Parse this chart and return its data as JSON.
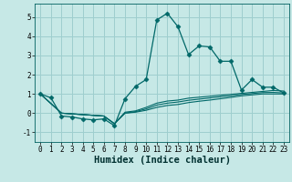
{
  "xlabel": "Humidex (Indice chaleur)",
  "ylabel": "",
  "xlim": [
    -0.5,
    23.5
  ],
  "ylim": [
    -1.5,
    5.7
  ],
  "bg_color": "#c6e8e6",
  "grid_color": "#9ecece",
  "line_color": "#006868",
  "lines": [
    {
      "x": [
        0,
        1,
        2,
        3,
        4,
        5,
        6,
        7,
        8,
        9,
        10,
        11,
        12,
        13,
        14,
        15,
        16,
        17,
        18,
        19,
        20,
        21,
        22,
        23
      ],
      "y": [
        1.0,
        0.8,
        -0.15,
        -0.2,
        -0.3,
        -0.35,
        -0.3,
        -0.65,
        0.75,
        1.4,
        1.75,
        4.85,
        5.2,
        4.5,
        3.05,
        3.5,
        3.45,
        2.7,
        2.7,
        1.2,
        1.75,
        1.35,
        1.35,
        1.05
      ],
      "marker": "D",
      "markersize": 2.5
    },
    {
      "x": [
        0,
        2,
        6,
        7,
        8,
        9,
        10,
        11,
        12,
        13,
        14,
        15,
        16,
        17,
        18,
        19,
        20,
        21,
        22,
        23
      ],
      "y": [
        1.0,
        0.0,
        -0.15,
        -0.55,
        0.0,
        0.05,
        0.15,
        0.3,
        0.4,
        0.45,
        0.55,
        0.62,
        0.68,
        0.75,
        0.82,
        0.9,
        0.95,
        1.0,
        1.0,
        1.0
      ],
      "marker": null,
      "markersize": 0
    },
    {
      "x": [
        0,
        2,
        6,
        7,
        8,
        9,
        10,
        11,
        12,
        13,
        14,
        15,
        16,
        17,
        18,
        19,
        20,
        21,
        22,
        23
      ],
      "y": [
        1.0,
        0.0,
        -0.15,
        -0.55,
        0.0,
        0.08,
        0.22,
        0.42,
        0.52,
        0.58,
        0.67,
        0.73,
        0.79,
        0.85,
        0.9,
        0.97,
        1.02,
        1.07,
        1.08,
        1.05
      ],
      "marker": null,
      "markersize": 0
    },
    {
      "x": [
        0,
        2,
        6,
        7,
        8,
        9,
        10,
        11,
        12,
        13,
        14,
        15,
        16,
        17,
        18,
        19,
        20,
        21,
        22,
        23
      ],
      "y": [
        1.0,
        0.0,
        -0.15,
        -0.55,
        0.05,
        0.12,
        0.3,
        0.52,
        0.63,
        0.68,
        0.78,
        0.83,
        0.88,
        0.93,
        0.98,
        1.03,
        1.08,
        1.13,
        1.18,
        1.15
      ],
      "marker": null,
      "markersize": 0
    }
  ],
  "xticks": [
    0,
    1,
    2,
    3,
    4,
    5,
    6,
    7,
    8,
    9,
    10,
    11,
    12,
    13,
    14,
    15,
    16,
    17,
    18,
    19,
    20,
    21,
    22,
    23
  ],
  "yticks": [
    -1,
    0,
    1,
    2,
    3,
    4,
    5
  ],
  "tick_fontsize": 5.5,
  "label_fontsize": 7.5
}
